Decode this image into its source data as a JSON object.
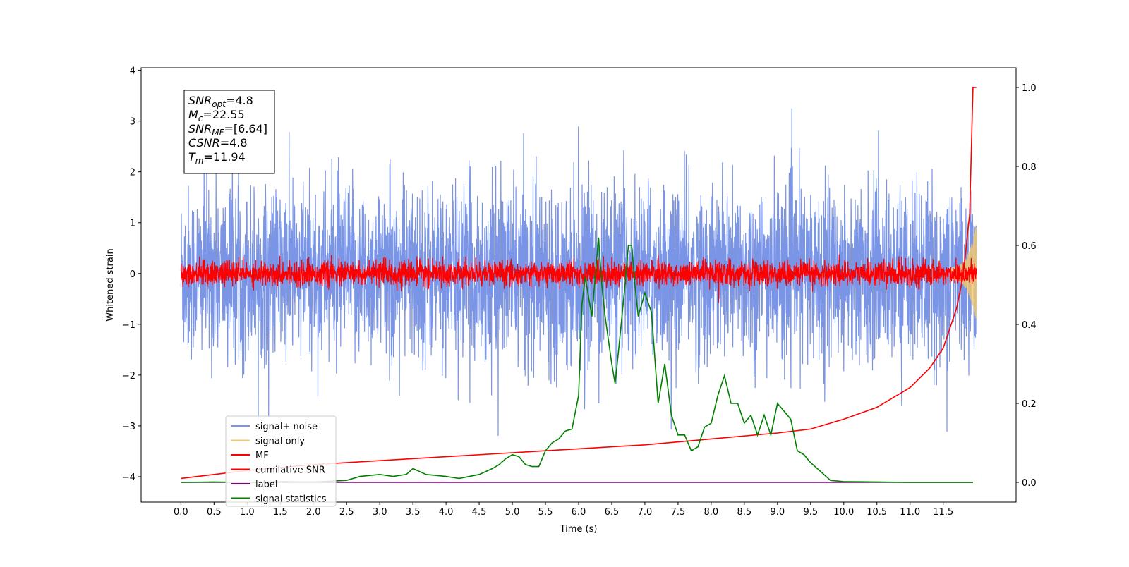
{
  "chart_data": {
    "type": "line",
    "xlabel": "Time (s)",
    "ylabel": "Whitened strain",
    "xlim": [
      -0.6,
      12.6
    ],
    "ylim_left": [
      -4.5,
      4.05
    ],
    "ylim_right": [
      -0.05,
      1.05
    ],
    "x_ticks": [
      "0.0",
      "0.5",
      "1.0",
      "1.5",
      "2.0",
      "2.5",
      "3.0",
      "3.5",
      "4.0",
      "4.5",
      "5.0",
      "5.5",
      "6.0",
      "6.5",
      "7.0",
      "7.5",
      "8.0",
      "8.5",
      "9.0",
      "9.5",
      "10.0",
      "10.5",
      "11.0",
      "11.5"
    ],
    "x_tick_values": [
      0,
      0.5,
      1,
      1.5,
      2,
      2.5,
      3,
      3.5,
      4,
      4.5,
      5,
      5.5,
      6,
      6.5,
      7,
      7.5,
      8,
      8.5,
      9,
      9.5,
      10,
      10.5,
      11,
      11.5
    ],
    "y_ticks_left": [
      "4",
      "3",
      "2",
      "1",
      "0",
      "−1",
      "−2",
      "−3",
      "−4"
    ],
    "y_tick_values_left": [
      4,
      3,
      2,
      1,
      0,
      -1,
      -2,
      -3,
      -4
    ],
    "y_ticks_right": [
      "1.0",
      "0.8",
      "0.6",
      "0.4",
      "0.2",
      "0.0"
    ],
    "y_tick_values_right": [
      1.0,
      0.8,
      0.6,
      0.4,
      0.2,
      0.0
    ],
    "legend_placement": "lower-left",
    "annotation": {
      "lines": [
        {
          "main": "SNR",
          "sub": "opt",
          "rest": "=4.8"
        },
        {
          "main": "M",
          "sub": "c",
          "rest": "=22.55"
        },
        {
          "main": "SNR",
          "sub": "MF",
          "rest": "=[6.64]"
        },
        {
          "main": "CSNR",
          "sub": "",
          "rest": "=4.8"
        },
        {
          "main": "T",
          "sub": "m",
          "rest": "=11.94"
        }
      ]
    },
    "series": [
      {
        "name": "signal+ noise",
        "color": "#7a94e6",
        "axis": "left",
        "kind": "noise",
        "amplitude_std": 0.85,
        "x_range": [
          0,
          12.0
        ]
      },
      {
        "name": "signal only",
        "color": "#f5c96b",
        "axis": "left",
        "kind": "chirp",
        "x_range": [
          11.6,
          12.0
        ]
      },
      {
        "name": "MF",
        "color": "#ff0000",
        "axis": "left",
        "kind": "noise",
        "amplitude_std": 0.12,
        "x_range": [
          0,
          12.0
        ]
      },
      {
        "name": "cumilative SNR",
        "color": "#ff0000",
        "axis": "right",
        "x": [
          0,
          1,
          2,
          3,
          4,
          5,
          6,
          7,
          8,
          9,
          9.5,
          10,
          10.5,
          11,
          11.3,
          11.5,
          11.7,
          11.8,
          11.9,
          11.95,
          12.0
        ],
        "y": [
          0.01,
          0.03,
          0.045,
          0.055,
          0.065,
          0.075,
          0.085,
          0.095,
          0.11,
          0.125,
          0.135,
          0.16,
          0.19,
          0.24,
          0.29,
          0.34,
          0.44,
          0.52,
          0.68,
          1.0,
          1.0
        ]
      },
      {
        "name": "label",
        "color": "#800080",
        "axis": "right",
        "x": [
          0,
          11.95
        ],
        "y": [
          0,
          0
        ]
      },
      {
        "name": "signal statistics",
        "color": "#008000",
        "axis": "right",
        "x": [
          0,
          0.5,
          1,
          1.5,
          2,
          2.5,
          2.7,
          3,
          3.2,
          3.4,
          3.5,
          3.7,
          4,
          4.2,
          4.5,
          4.7,
          4.8,
          4.9,
          5,
          5.1,
          5.2,
          5.3,
          5.4,
          5.5,
          5.6,
          5.7,
          5.8,
          5.9,
          6,
          6.05,
          6.1,
          6.2,
          6.3,
          6.35,
          6.4,
          6.5,
          6.55,
          6.6,
          6.7,
          6.75,
          6.8,
          6.85,
          6.9,
          7,
          7.1,
          7.2,
          7.3,
          7.4,
          7.5,
          7.6,
          7.7,
          7.8,
          7.9,
          8,
          8.1,
          8.2,
          8.3,
          8.4,
          8.5,
          8.6,
          8.7,
          8.8,
          8.9,
          9,
          9.1,
          9.2,
          9.3,
          9.4,
          9.5,
          9.7,
          9.8,
          10,
          10.5,
          11,
          11.5,
          11.95
        ],
        "y": [
          0,
          0.001,
          0.0,
          0.002,
          0.001,
          0.005,
          0.015,
          0.02,
          0.015,
          0.02,
          0.035,
          0.02,
          0.015,
          0.01,
          0.02,
          0.035,
          0.045,
          0.06,
          0.07,
          0.065,
          0.045,
          0.04,
          0.04,
          0.08,
          0.1,
          0.11,
          0.13,
          0.135,
          0.22,
          0.45,
          0.52,
          0.42,
          0.62,
          0.5,
          0.42,
          0.3,
          0.25,
          0.33,
          0.5,
          0.6,
          0.6,
          0.5,
          0.42,
          0.48,
          0.43,
          0.2,
          0.3,
          0.17,
          0.12,
          0.12,
          0.08,
          0.09,
          0.14,
          0.15,
          0.22,
          0.27,
          0.2,
          0.2,
          0.15,
          0.17,
          0.12,
          0.17,
          0.12,
          0.2,
          0.18,
          0.16,
          0.08,
          0.07,
          0.05,
          0.02,
          0.005,
          0.002,
          0.001,
          0,
          0,
          0
        ]
      }
    ]
  }
}
